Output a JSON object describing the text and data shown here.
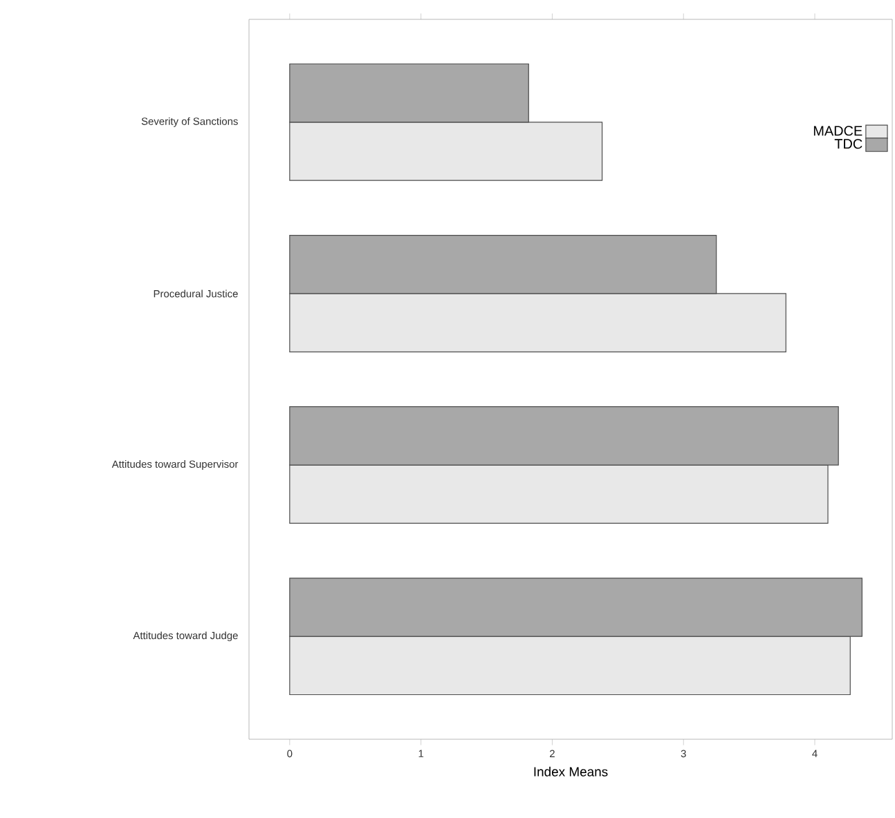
{
  "chart_data": {
    "type": "bar",
    "orientation": "horizontal",
    "categories": [
      "Severity of Sanctions",
      "Procedural Justice",
      "Attitudes toward Supervisor",
      "Attitudes toward Judge"
    ],
    "series": [
      {
        "name": "MADCE",
        "color": "#e8e8e8",
        "values": [
          2.38,
          3.78,
          4.1,
          4.27
        ]
      },
      {
        "name": "TDC",
        "color": "#a8a8a8",
        "values": [
          1.82,
          3.25,
          4.18,
          4.36
        ]
      }
    ],
    "xlim": [
      -0.31,
      4.59
    ],
    "xticks": [
      0,
      1,
      2,
      3,
      4
    ],
    "xlabel": "Index Means",
    "legend": "top right"
  }
}
